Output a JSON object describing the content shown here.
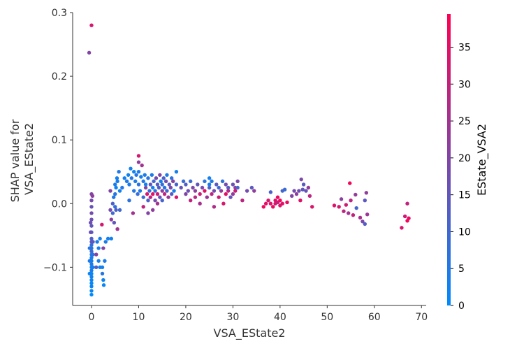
{
  "chart_data": {
    "type": "scatter",
    "xlabel": "VSA_EState2",
    "ylabel_lines": [
      "SHAP value for",
      "VSA_EState2"
    ],
    "colorbar_label": "EState_VSA2",
    "xlim": [
      -4,
      71
    ],
    "ylim": [
      -0.16,
      0.3
    ],
    "xticks": [
      0,
      10,
      20,
      30,
      40,
      50,
      60,
      70
    ],
    "yticks": [
      -0.1,
      0.0,
      0.1,
      0.2,
      0.3
    ],
    "xtick_labels": [
      "0",
      "10",
      "20",
      "30",
      "40",
      "50",
      "60",
      "70"
    ],
    "ytick_labels": [
      "−0.1",
      "0.0",
      "0.1",
      "0.2",
      "0.3"
    ],
    "colorbar_range": [
      0,
      39.5
    ],
    "colorbar_ticks": [
      0,
      5,
      10,
      15,
      20,
      25,
      30,
      35
    ],
    "colorbar_tick_labels": [
      "0",
      "5",
      "10",
      "15",
      "20",
      "25",
      "30",
      "35"
    ],
    "colormap": [
      "#008afb",
      "#ff0052"
    ],
    "grid": false,
    "points": [
      [
        -0.5,
        0.237,
        20
      ],
      [
        0.0,
        0.28,
        33
      ],
      [
        0.0,
        0.015,
        20
      ],
      [
        0.0,
        0.005,
        18
      ],
      [
        0.0,
        -0.005,
        16
      ],
      [
        0.0,
        -0.015,
        18
      ],
      [
        0.0,
        -0.025,
        17
      ],
      [
        0.0,
        -0.035,
        15
      ],
      [
        0.0,
        -0.045,
        14
      ],
      [
        0.0,
        -0.055,
        12
      ],
      [
        0.0,
        -0.06,
        15
      ],
      [
        0.0,
        -0.065,
        8
      ],
      [
        0.0,
        -0.07,
        6
      ],
      [
        0.0,
        -0.075,
        10
      ],
      [
        0.0,
        -0.08,
        5
      ],
      [
        0.0,
        -0.085,
        4
      ],
      [
        0.0,
        -0.09,
        3
      ],
      [
        0.0,
        -0.095,
        5
      ],
      [
        0.0,
        -0.1,
        2
      ],
      [
        0.0,
        -0.105,
        4
      ],
      [
        0.0,
        -0.11,
        1
      ],
      [
        0.0,
        -0.115,
        3
      ],
      [
        0.0,
        -0.12,
        2
      ],
      [
        0.0,
        -0.125,
        1
      ],
      [
        0.0,
        -0.13,
        2
      ],
      [
        0.0,
        -0.137,
        1
      ],
      [
        0.0,
        -0.143,
        0
      ],
      [
        -0.4,
        -0.07,
        6
      ],
      [
        -0.4,
        -0.09,
        4
      ],
      [
        -0.4,
        -0.11,
        2
      ],
      [
        0.3,
        -0.06,
        14
      ],
      [
        0.3,
        -0.08,
        7
      ],
      [
        0.3,
        -0.1,
        3
      ],
      [
        0.2,
        0.012,
        22
      ],
      [
        -0.2,
        -0.03,
        17
      ],
      [
        -0.2,
        -0.045,
        16
      ],
      [
        1.0,
        -0.08,
        20
      ],
      [
        1.0,
        -0.1,
        12
      ],
      [
        1.2,
        -0.06,
        4
      ],
      [
        1.5,
        -0.07,
        3
      ],
      [
        1.5,
        -0.09,
        3
      ],
      [
        1.8,
        -0.055,
        3
      ],
      [
        1.8,
        -0.1,
        2
      ],
      [
        2.2,
        -0.033,
        33
      ],
      [
        2.3,
        -0.1,
        3
      ],
      [
        2.3,
        -0.11,
        6
      ],
      [
        2.5,
        -0.07,
        20
      ],
      [
        2.5,
        -0.12,
        2
      ],
      [
        2.6,
        -0.128,
        1
      ],
      [
        2.8,
        -0.09,
        4
      ],
      [
        3.0,
        -0.06,
        4
      ],
      [
        3.5,
        -0.055,
        3
      ],
      [
        4.0,
        0.02,
        20
      ],
      [
        4.0,
        -0.01,
        18
      ],
      [
        4.2,
        -0.025,
        22
      ],
      [
        4.2,
        -0.055,
        3
      ],
      [
        4.5,
        0.0,
        12
      ],
      [
        4.5,
        -0.015,
        10
      ],
      [
        4.7,
        0.01,
        5
      ],
      [
        4.8,
        -0.03,
        15
      ],
      [
        5.0,
        0.03,
        4
      ],
      [
        5.0,
        0.015,
        6
      ],
      [
        5.0,
        -0.005,
        8
      ],
      [
        5.2,
        0.025,
        2
      ],
      [
        5.2,
        -0.01,
        12
      ],
      [
        5.4,
        0.04,
        3
      ],
      [
        5.5,
        0.035,
        4
      ],
      [
        5.5,
        -0.04,
        25
      ],
      [
        5.8,
        0.05,
        5
      ],
      [
        6.0,
        0.02,
        3
      ],
      [
        6.0,
        -0.01,
        10
      ],
      [
        6.5,
        0.025,
        5
      ],
      [
        7.0,
        0.04,
        3
      ],
      [
        7.5,
        0.035,
        5
      ],
      [
        7.8,
        0.045,
        2
      ],
      [
        8.0,
        0.03,
        4
      ],
      [
        8.0,
        0.005,
        7
      ],
      [
        8.3,
        0.055,
        3
      ],
      [
        8.5,
        0.04,
        6
      ],
      [
        8.8,
        -0.015,
        25
      ],
      [
        9.0,
        0.05,
        2
      ],
      [
        9.0,
        0.02,
        5
      ],
      [
        9.3,
        0.035,
        4
      ],
      [
        9.5,
        0.045,
        6
      ],
      [
        9.8,
        0.015,
        8
      ],
      [
        10.0,
        0.075,
        33
      ],
      [
        10.0,
        0.065,
        22
      ],
      [
        10.0,
        0.05,
        4
      ],
      [
        10.0,
        0.03,
        6
      ],
      [
        10.3,
        0.02,
        5
      ],
      [
        10.5,
        0.042,
        3
      ],
      [
        10.7,
        0.06,
        25
      ],
      [
        11.0,
        0.035,
        5
      ],
      [
        11.0,
        0.01,
        9
      ],
      [
        11.0,
        -0.005,
        30
      ],
      [
        11.3,
        0.045,
        4
      ],
      [
        11.5,
        0.025,
        20
      ],
      [
        11.5,
        0.03,
        3
      ],
      [
        11.8,
        0.015,
        33
      ],
      [
        12.0,
        0.04,
        6
      ],
      [
        12.0,
        0.005,
        12
      ],
      [
        12.0,
        -0.015,
        20
      ],
      [
        12.3,
        0.02,
        8
      ],
      [
        12.5,
        0.03,
        15
      ],
      [
        12.5,
        0.01,
        30
      ],
      [
        12.8,
        0.045,
        4
      ],
      [
        13.0,
        0.025,
        3
      ],
      [
        13.0,
        0.015,
        35
      ],
      [
        13.0,
        -0.01,
        22
      ],
      [
        13.2,
        0.035,
        10
      ],
      [
        13.5,
        0.02,
        7
      ],
      [
        13.5,
        0.005,
        18
      ],
      [
        13.7,
        0.04,
        18
      ],
      [
        14.0,
        0.03,
        14
      ],
      [
        14.0,
        0.015,
        32
      ],
      [
        14.0,
        0.0,
        25
      ],
      [
        14.3,
        0.025,
        12
      ],
      [
        14.5,
        0.045,
        20
      ],
      [
        14.5,
        0.01,
        16
      ],
      [
        14.7,
        0.035,
        3
      ],
      [
        15.0,
        0.02,
        22
      ],
      [
        15.0,
        0.005,
        11
      ],
      [
        15.0,
        0.03,
        8
      ],
      [
        15.3,
        0.04,
        12
      ],
      [
        15.5,
        0.015,
        30
      ],
      [
        15.5,
        0.025,
        6
      ],
      [
        15.8,
        0.035,
        17
      ],
      [
        16.0,
        0.02,
        10
      ],
      [
        16.0,
        0.045,
        4
      ],
      [
        16.3,
        0.01,
        24
      ],
      [
        16.5,
        0.03,
        14
      ],
      [
        16.8,
        0.025,
        19
      ],
      [
        17.0,
        0.04,
        7
      ],
      [
        17.0,
        0.015,
        13
      ],
      [
        17.3,
        0.035,
        21
      ],
      [
        17.5,
        0.02,
        3
      ],
      [
        18.0,
        0.05,
        3
      ],
      [
        18.0,
        0.03,
        11
      ],
      [
        18.0,
        0.01,
        34
      ],
      [
        19.0,
        0.025,
        16
      ],
      [
        19.5,
        0.035,
        9
      ],
      [
        20.0,
        0.03,
        13
      ],
      [
        20.0,
        0.015,
        20
      ],
      [
        20.5,
        0.02,
        17
      ],
      [
        21.0,
        0.035,
        9
      ],
      [
        21.0,
        0.005,
        30
      ],
      [
        21.5,
        0.025,
        19
      ],
      [
        22.0,
        0.02,
        22
      ],
      [
        22.0,
        0.01,
        28
      ],
      [
        22.5,
        0.03,
        15
      ],
      [
        23.0,
        0.015,
        31
      ],
      [
        23.0,
        0.0,
        26
      ],
      [
        23.5,
        0.025,
        18
      ],
      [
        24.0,
        0.02,
        35
      ],
      [
        24.0,
        0.035,
        6
      ],
      [
        24.5,
        0.01,
        24
      ],
      [
        25.0,
        0.04,
        3
      ],
      [
        25.0,
        0.025,
        12
      ],
      [
        25.0,
        0.03,
        4
      ],
      [
        25.5,
        0.015,
        29
      ],
      [
        25.5,
        0.035,
        5
      ],
      [
        26.0,
        -0.005,
        27
      ],
      [
        26.0,
        0.02,
        18
      ],
      [
        26.5,
        0.03,
        14
      ],
      [
        27.0,
        0.01,
        32
      ],
      [
        27.0,
        0.025,
        9
      ],
      [
        27.5,
        0.02,
        23
      ],
      [
        27.8,
        0.035,
        7
      ],
      [
        28.0,
        0.0,
        33
      ],
      [
        28.5,
        0.015,
        35
      ],
      [
        28.5,
        0.03,
        18
      ],
      [
        29.0,
        0.02,
        28
      ],
      [
        29.0,
        0.025,
        13
      ],
      [
        29.5,
        0.01,
        16
      ],
      [
        30.0,
        0.03,
        17
      ],
      [
        30.0,
        0.015,
        22
      ],
      [
        30.5,
        0.025,
        21
      ],
      [
        30.5,
        0.02,
        32
      ],
      [
        31.0,
        0.035,
        19
      ],
      [
        31.0,
        0.025,
        11
      ],
      [
        32.0,
        0.005,
        29
      ],
      [
        33.0,
        0.02,
        18
      ],
      [
        34.0,
        0.025,
        14
      ],
      [
        34.5,
        0.02,
        22
      ],
      [
        36.5,
        -0.005,
        37
      ],
      [
        37.0,
        0.0,
        35
      ],
      [
        37.5,
        0.005,
        33
      ],
      [
        38.0,
        0.018,
        12
      ],
      [
        38.0,
        0.0,
        34
      ],
      [
        38.5,
        -0.005,
        36
      ],
      [
        39.0,
        0.005,
        35
      ],
      [
        39.0,
        0.0,
        33
      ],
      [
        39.5,
        0.01,
        36
      ],
      [
        39.5,
        0.002,
        30
      ],
      [
        40.0,
        -0.003,
        34
      ],
      [
        40.0,
        0.005,
        37
      ],
      [
        40.5,
        0.02,
        11
      ],
      [
        40.5,
        0.0,
        35
      ],
      [
        41.0,
        0.022,
        9
      ],
      [
        41.5,
        0.002,
        36
      ],
      [
        42.5,
        0.012,
        20
      ],
      [
        43.0,
        0.02,
        18
      ],
      [
        43.5,
        0.015,
        22
      ],
      [
        44.0,
        0.02,
        17
      ],
      [
        44.3,
        0.005,
        35
      ],
      [
        44.5,
        0.038,
        19
      ],
      [
        44.8,
        0.022,
        15
      ],
      [
        45.0,
        0.03,
        14
      ],
      [
        45.5,
        0.02,
        16
      ],
      [
        46.0,
        0.025,
        23
      ],
      [
        46.3,
        0.012,
        29
      ],
      [
        46.8,
        -0.005,
        34
      ],
      [
        51.5,
        -0.003,
        34
      ],
      [
        52.5,
        -0.005,
        33
      ],
      [
        53.0,
        0.007,
        21
      ],
      [
        53.5,
        -0.012,
        29
      ],
      [
        54.0,
        -0.002,
        32
      ],
      [
        54.5,
        -0.015,
        25
      ],
      [
        54.8,
        0.032,
        38
      ],
      [
        55.0,
        0.005,
        28
      ],
      [
        55.5,
        -0.018,
        30
      ],
      [
        56.0,
        0.014,
        23
      ],
      [
        56.2,
        -0.007,
        10
      ],
      [
        57.0,
        -0.022,
        26
      ],
      [
        57.5,
        -0.028,
        19
      ],
      [
        58.0,
        0.005,
        14
      ],
      [
        58.0,
        -0.032,
        13
      ],
      [
        58.3,
        0.017,
        22
      ],
      [
        58.5,
        -0.017,
        24
      ],
      [
        65.8,
        -0.038,
        34
      ],
      [
        66.5,
        -0.02,
        32
      ],
      [
        67.0,
        0.0,
        30
      ],
      [
        67.0,
        -0.027,
        38
      ],
      [
        67.3,
        -0.023,
        36
      ]
    ]
  }
}
